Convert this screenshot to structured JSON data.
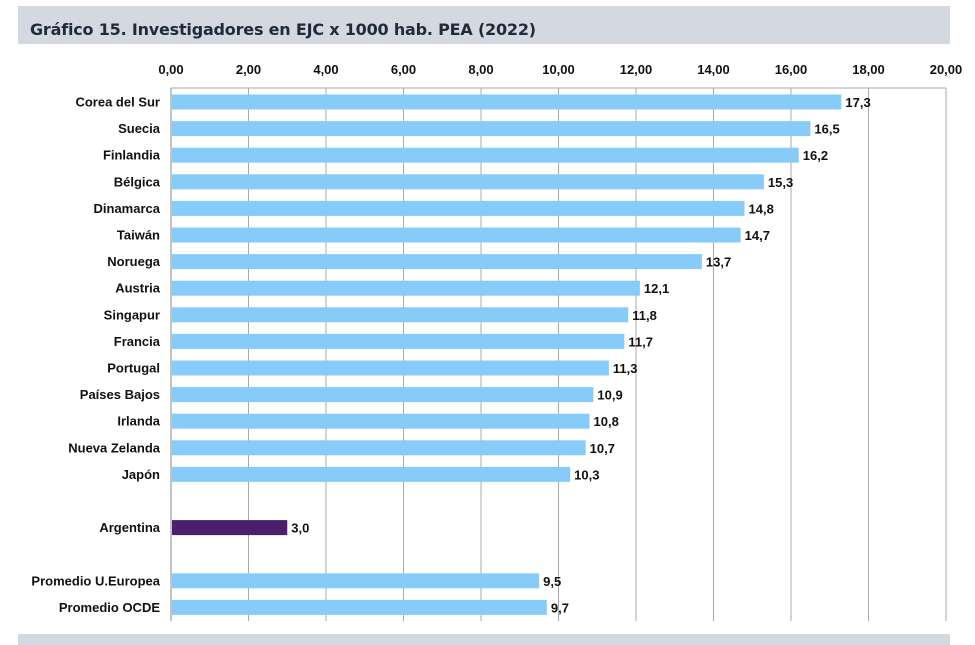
{
  "title": "Gráfico 15. Investigadores en EJC x 1000 hab. PEA (2022)",
  "colors": {
    "bar": "#87ccf8",
    "highlight": "#4a1f6b",
    "grid": "#a9a9a9",
    "band": "#d4d8e1"
  },
  "chart_data": {
    "type": "bar",
    "orientation": "horizontal",
    "title": "Gráfico 15. Investigadores en EJC x 1000 hab. PEA (2022)",
    "xlabel": "",
    "ylabel": "",
    "xlim": [
      0,
      20
    ],
    "x_ticks": [
      "0,00",
      "2,00",
      "4,00",
      "6,00",
      "8,00",
      "10,00",
      "12,00",
      "14,00",
      "16,00",
      "18,00",
      "20,00"
    ],
    "x_axis_position": "top",
    "grid": true,
    "bars": [
      {
        "label": "Corea del Sur",
        "value": 17.3,
        "value_label": "17,3",
        "highlight": false
      },
      {
        "label": "Suecia",
        "value": 16.5,
        "value_label": "16,5",
        "highlight": false
      },
      {
        "label": "Finlandia",
        "value": 16.2,
        "value_label": "16,2",
        "highlight": false
      },
      {
        "label": "Bélgica",
        "value": 15.3,
        "value_label": "15,3",
        "highlight": false
      },
      {
        "label": "Dinamarca",
        "value": 14.8,
        "value_label": "14,8",
        "highlight": false
      },
      {
        "label": "Taiwán",
        "value": 14.7,
        "value_label": "14,7",
        "highlight": false
      },
      {
        "label": "Noruega",
        "value": 13.7,
        "value_label": "13,7",
        "highlight": false
      },
      {
        "label": "Austria",
        "value": 12.1,
        "value_label": "12,1",
        "highlight": false
      },
      {
        "label": "Singapur",
        "value": 11.8,
        "value_label": "11,8",
        "highlight": false
      },
      {
        "label": "Francia",
        "value": 11.7,
        "value_label": "11,7",
        "highlight": false
      },
      {
        "label": "Portugal",
        "value": 11.3,
        "value_label": "11,3",
        "highlight": false
      },
      {
        "label": "Países Bajos",
        "value": 10.9,
        "value_label": "10,9",
        "highlight": false
      },
      {
        "label": "Irlanda",
        "value": 10.8,
        "value_label": "10,8",
        "highlight": false
      },
      {
        "label": "Nueva Zelanda",
        "value": 10.7,
        "value_label": "10,7",
        "highlight": false
      },
      {
        "label": "Japón",
        "value": 10.3,
        "value_label": "10,3",
        "highlight": false
      },
      {
        "label": "",
        "value": null,
        "value_label": "",
        "highlight": false
      },
      {
        "label": "Argentina",
        "value": 3.0,
        "value_label": "3,0",
        "highlight": true
      },
      {
        "label": "",
        "value": null,
        "value_label": "",
        "highlight": false
      },
      {
        "label": "Promedio U.Europea",
        "value": 9.5,
        "value_label": "9,5",
        "highlight": false
      },
      {
        "label": "Promedio OCDE",
        "value": 9.7,
        "value_label": "9,7",
        "highlight": false
      }
    ]
  }
}
